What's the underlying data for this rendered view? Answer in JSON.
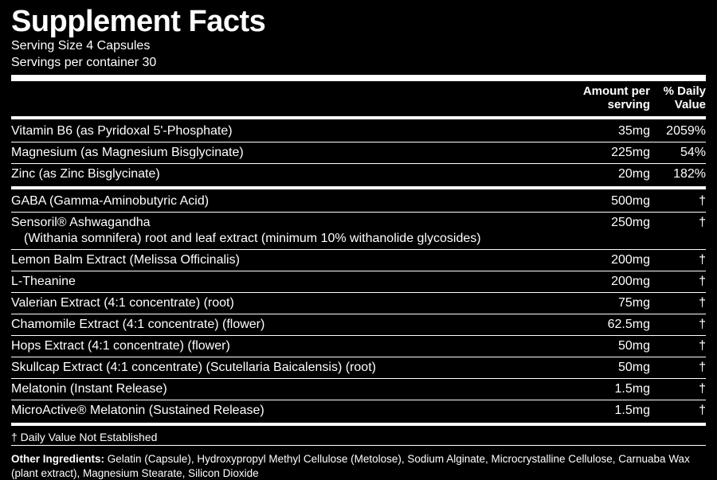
{
  "title": "Supplement Facts",
  "serving_size": "Serving Size 4 Capsules",
  "servings_per_container": "Servings per container 30",
  "headers": {
    "amount": "Amount per serving",
    "dv": "% Daily Value"
  },
  "rows": [
    {
      "name": "Vitamin B6 (as Pyridoxal 5'-Phosphate)",
      "amount": "35mg",
      "dv": "2059%"
    },
    {
      "name": "Magnesium (as Magnesium Bisglycinate)",
      "amount": "225mg",
      "dv": "54%"
    },
    {
      "name": "Zinc (as Zinc Bisglycinate)",
      "amount": "20mg",
      "dv": "182%"
    }
  ],
  "rows2": [
    {
      "name": "GABA (Gamma-Aminobutyric Acid)",
      "amount": "500mg",
      "dv": "†"
    },
    {
      "name": "Sensoril® Ashwagandha",
      "sub": "(Withania somnifera) root and leaf extract (minimum 10% withanolide glycosides)",
      "amount": "250mg",
      "dv": "†"
    },
    {
      "name": "Lemon Balm Extract (Melissa Officinalis)",
      "amount": "200mg",
      "dv": "†"
    },
    {
      "name": "L-Theanine",
      "amount": "200mg",
      "dv": "†"
    },
    {
      "name": "Valerian Extract (4:1 concentrate) (root)",
      "amount": "75mg",
      "dv": "†"
    },
    {
      "name": "Chamomile Extract (4:1 concentrate) (flower)",
      "amount": "62.5mg",
      "dv": "†"
    },
    {
      "name": "Hops Extract (4:1 concentrate) (flower)",
      "amount": "50mg",
      "dv": "†"
    },
    {
      "name": "Skullcap Extract (4:1 concentrate) (Scutellaria Baicalensis) (root)",
      "amount": "50mg",
      "dv": "†"
    },
    {
      "name": "Melatonin (Instant Release)",
      "amount": "1.5mg",
      "dv": "†"
    },
    {
      "name": "MicroActive® Melatonin (Sustained Release)",
      "amount": "1.5mg",
      "dv": "†"
    }
  ],
  "footnote": "† Daily Value Not Established",
  "other_label": "Other Ingredients:",
  "other_text": " Gelatin (Capsule), Hydroxypropyl Methyl Cellulose (Metolose), Sodium Alginate, Microcrystalline Cellulose, Carnuaba Wax (plant extract), Magnesium Stearate, Silicon Dioxide"
}
